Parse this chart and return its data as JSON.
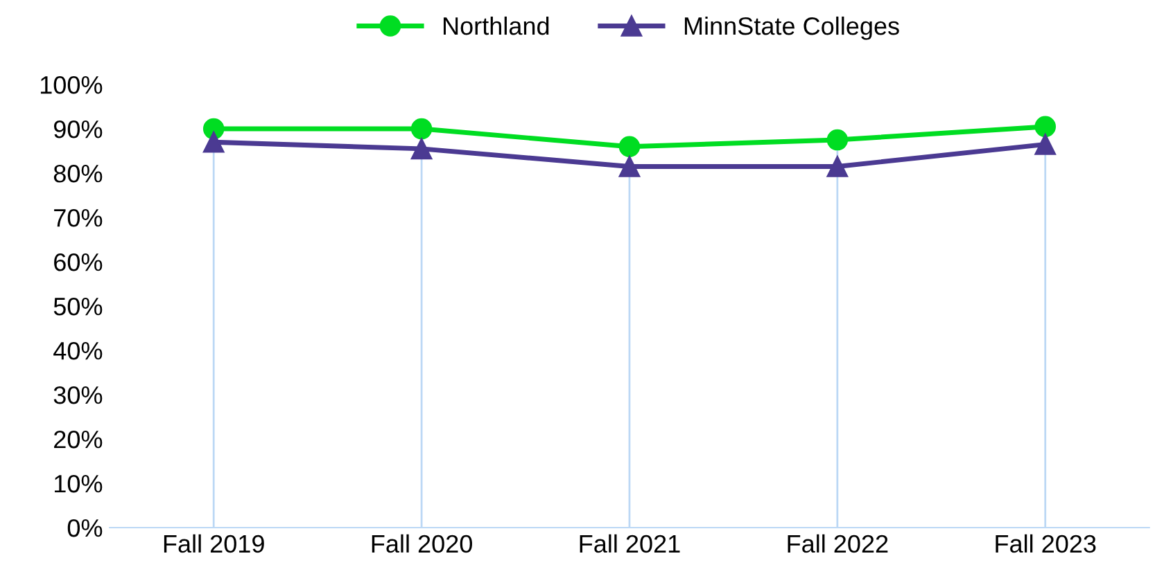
{
  "chart_data": {
    "type": "line",
    "categories": [
      "Fall 2019",
      "Fall 2020",
      "Fall 2021",
      "Fall 2022",
      "Fall 2023"
    ],
    "series": [
      {
        "name": "Northland",
        "color": "#00dd22",
        "marker": "circle",
        "values": [
          90,
          90,
          86,
          87.5,
          90.5
        ]
      },
      {
        "name": "MinnState Colleges",
        "color": "#4b3a92",
        "marker": "triangle",
        "values": [
          87,
          85.5,
          81.5,
          81.5,
          86.5
        ]
      }
    ],
    "ylim": [
      0,
      100
    ],
    "yticks": [
      {
        "value": 0,
        "label": "0%"
      },
      {
        "value": 10,
        "label": "10%"
      },
      {
        "value": 20,
        "label": "20%"
      },
      {
        "value": 30,
        "label": "30%"
      },
      {
        "value": 40,
        "label": "40%"
      },
      {
        "value": 50,
        "label": "50%"
      },
      {
        "value": 60,
        "label": "60%"
      },
      {
        "value": 70,
        "label": "70%"
      },
      {
        "value": 80,
        "label": "80%"
      },
      {
        "value": 90,
        "label": "90%"
      },
      {
        "value": 100,
        "label": "100%"
      }
    ],
    "grid": "x",
    "legend": "top",
    "line_style": "solid"
  }
}
